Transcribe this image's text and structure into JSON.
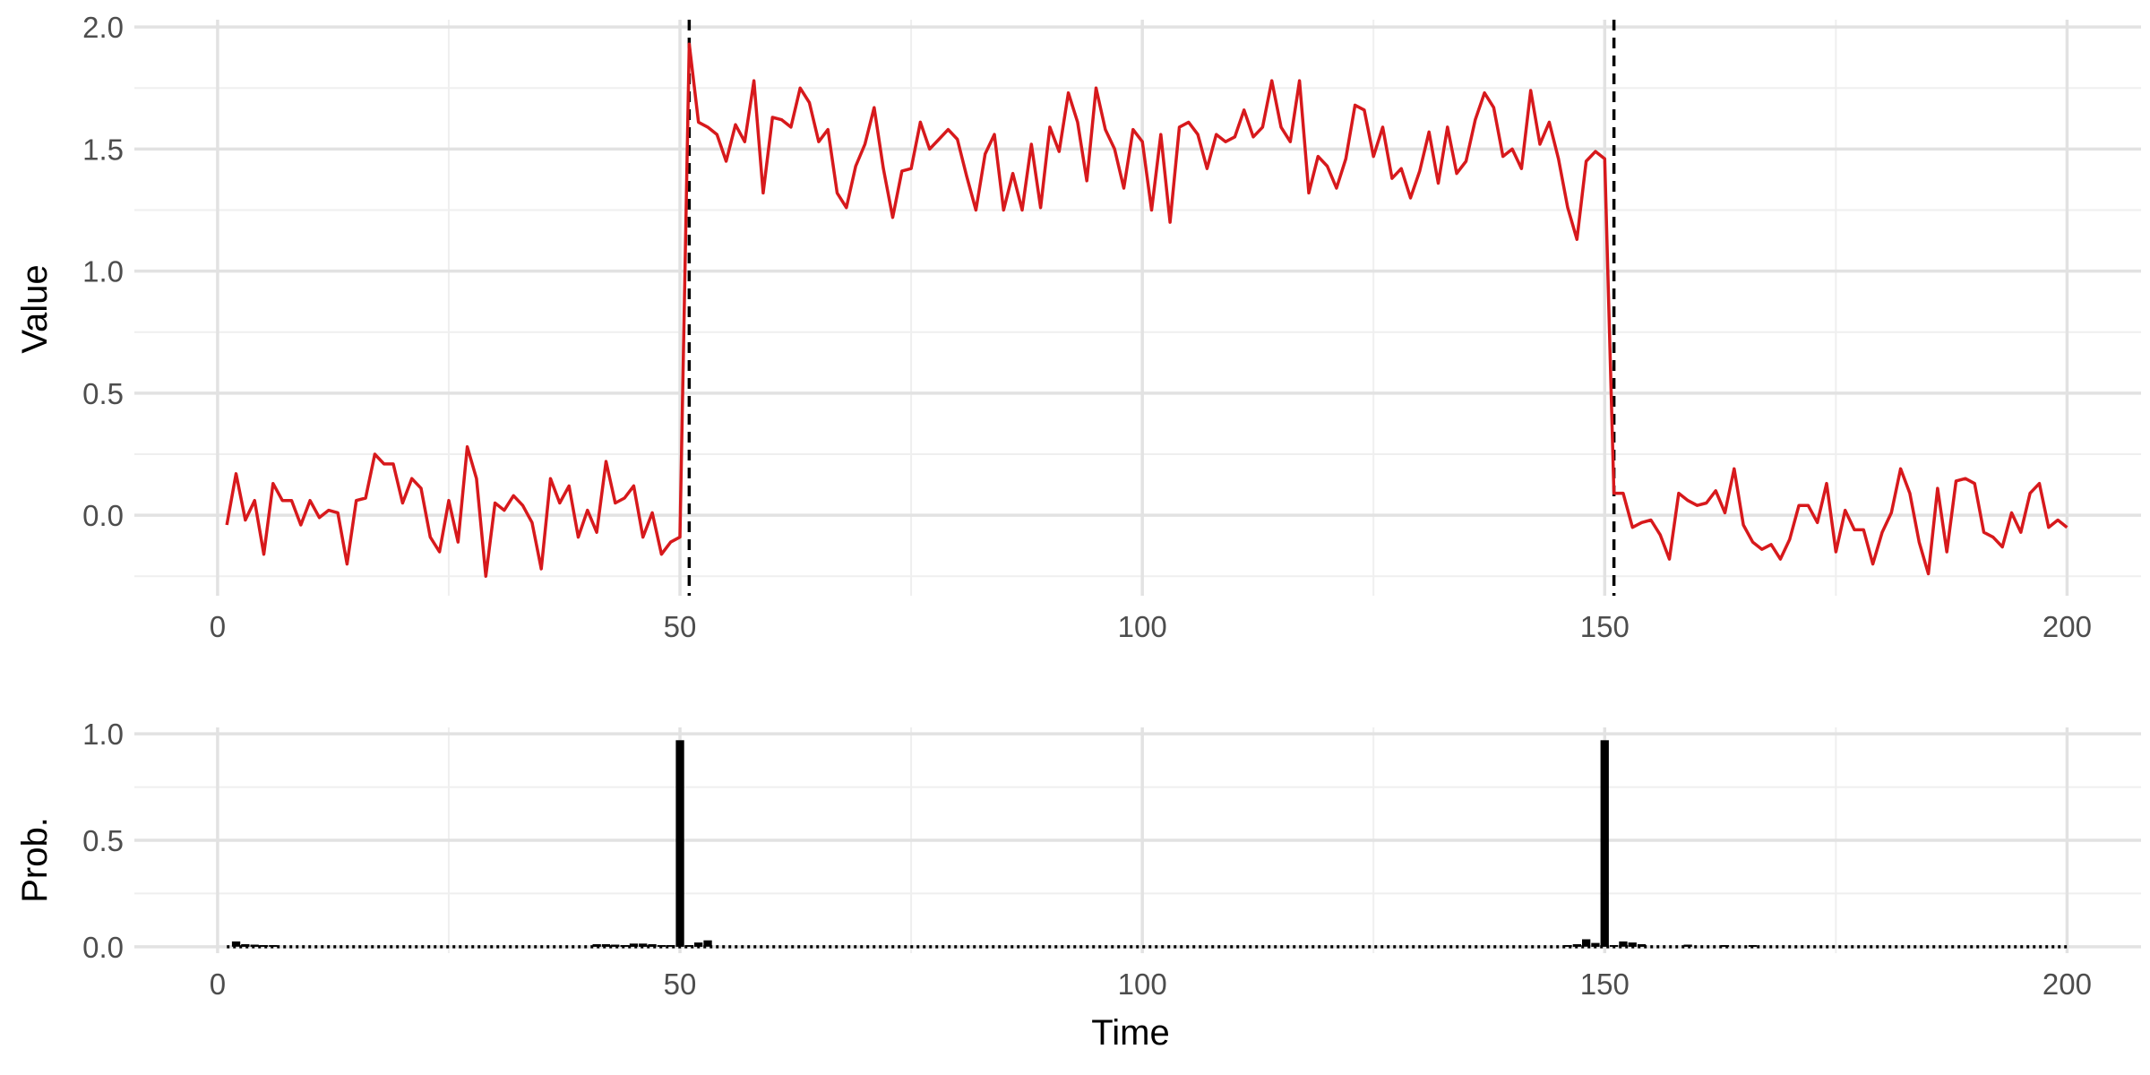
{
  "chart_data": [
    {
      "type": "line",
      "title": "",
      "xlabel": "",
      "ylabel": "Value",
      "xlim": [
        -9,
        208
      ],
      "ylim": [
        -0.33,
        2.03
      ],
      "x_ticks": [
        0,
        50,
        100,
        150,
        200
      ],
      "y_ticks": [
        0.0,
        0.5,
        1.0,
        1.5,
        2.0
      ],
      "x_tick_labels": [
        "0",
        "50",
        "100",
        "150",
        "200"
      ],
      "y_tick_labels": [
        "0.0",
        "0.5",
        "1.0",
        "1.5",
        "2.0"
      ],
      "grid": true,
      "x": [
        1,
        2,
        3,
        4,
        5,
        6,
        7,
        8,
        9,
        10,
        11,
        12,
        13,
        14,
        15,
        16,
        17,
        18,
        19,
        20,
        21,
        22,
        23,
        24,
        25,
        26,
        27,
        28,
        29,
        30,
        31,
        32,
        33,
        34,
        35,
        36,
        37,
        38,
        39,
        40,
        41,
        42,
        43,
        44,
        45,
        46,
        47,
        48,
        49,
        50,
        51,
        52,
        53,
        54,
        55,
        56,
        57,
        58,
        59,
        60,
        61,
        62,
        63,
        64,
        65,
        66,
        67,
        68,
        69,
        70,
        71,
        72,
        73,
        74,
        75,
        76,
        77,
        78,
        79,
        80,
        81,
        82,
        83,
        84,
        85,
        86,
        87,
        88,
        89,
        90,
        91,
        92,
        93,
        94,
        95,
        96,
        97,
        98,
        99,
        100,
        101,
        102,
        103,
        104,
        105,
        106,
        107,
        108,
        109,
        110,
        111,
        112,
        113,
        114,
        115,
        116,
        117,
        118,
        119,
        120,
        121,
        122,
        123,
        124,
        125,
        126,
        127,
        128,
        129,
        130,
        131,
        132,
        133,
        134,
        135,
        136,
        137,
        138,
        139,
        140,
        141,
        142,
        143,
        144,
        145,
        146,
        147,
        148,
        149,
        150,
        151,
        152,
        153,
        154,
        155,
        156,
        157,
        158,
        159,
        160,
        161,
        162,
        163,
        164,
        165,
        166,
        167,
        168,
        169,
        170,
        171,
        172,
        173,
        174,
        175,
        176,
        177,
        178,
        179,
        180,
        181,
        182,
        183,
        184,
        185,
        186,
        187,
        188,
        189,
        190,
        191,
        192,
        193,
        194,
        195,
        196,
        197,
        198,
        199,
        200
      ],
      "series": [
        {
          "color": "#d7191c",
          "values": [
            -0.04,
            0.17,
            -0.02,
            0.06,
            -0.16,
            0.13,
            0.06,
            0.06,
            -0.04,
            0.06,
            -0.01,
            0.02,
            0.01,
            -0.2,
            0.06,
            0.07,
            0.25,
            0.21,
            0.21,
            0.05,
            0.15,
            0.11,
            -0.09,
            -0.15,
            0.06,
            -0.11,
            0.28,
            0.15,
            -0.25,
            0.05,
            0.02,
            0.08,
            0.04,
            -0.03,
            -0.22,
            0.15,
            0.05,
            0.12,
            -0.09,
            0.02,
            -0.07,
            0.22,
            0.05,
            0.07,
            0.12,
            -0.09,
            0.01,
            -0.16,
            -0.11,
            -0.09,
            1.93,
            1.61,
            1.59,
            1.56,
            1.45,
            1.6,
            1.53,
            1.78,
            1.32,
            1.63,
            1.62,
            1.59,
            1.75,
            1.69,
            1.53,
            1.58,
            1.32,
            1.26,
            1.43,
            1.52,
            1.67,
            1.42,
            1.22,
            1.41,
            1.42,
            1.61,
            1.5,
            1.54,
            1.58,
            1.54,
            1.39,
            1.25,
            1.48,
            1.56,
            1.25,
            1.4,
            1.25,
            1.52,
            1.26,
            1.59,
            1.49,
            1.73,
            1.61,
            1.37,
            1.75,
            1.58,
            1.5,
            1.34,
            1.58,
            1.53,
            1.25,
            1.56,
            1.2,
            1.59,
            1.61,
            1.56,
            1.42,
            1.56,
            1.53,
            1.55,
            1.66,
            1.55,
            1.59,
            1.78,
            1.59,
            1.53,
            1.78,
            1.32,
            1.47,
            1.43,
            1.34,
            1.46,
            1.68,
            1.66,
            1.47,
            1.59,
            1.38,
            1.42,
            1.3,
            1.41,
            1.57,
            1.36,
            1.59,
            1.4,
            1.45,
            1.62,
            1.73,
            1.67,
            1.47,
            1.5,
            1.42,
            1.74,
            1.52,
            1.61,
            1.46,
            1.26,
            1.13,
            1.45,
            1.49,
            1.46,
            0.09,
            0.09,
            -0.05,
            -0.03,
            -0.02,
            -0.08,
            -0.18,
            0.09,
            0.06,
            0.04,
            0.05,
            0.1,
            0.01,
            0.19,
            -0.04,
            -0.11,
            -0.14,
            -0.12,
            -0.18,
            -0.1,
            0.04,
            0.04,
            -0.03,
            0.13,
            -0.15,
            0.02,
            -0.06,
            -0.06,
            -0.2,
            -0.07,
            0.01,
            0.19,
            0.09,
            -0.11,
            -0.24,
            0.11,
            -0.15,
            0.14,
            0.15,
            0.13,
            -0.07,
            -0.09,
            -0.13,
            0.01,
            -0.07,
            0.09,
            0.13,
            -0.05,
            -0.02,
            -0.05
          ]
        }
      ],
      "vlines": [
        {
          "x": 51,
          "style": "dashed",
          "color": "#000000"
        },
        {
          "x": 151,
          "style": "dashed",
          "color": "#000000"
        }
      ]
    },
    {
      "type": "bar",
      "title": "",
      "xlabel": "Time",
      "ylabel": "Prob.",
      "xlim": [
        -9,
        208
      ],
      "ylim": [
        -0.03,
        1.03
      ],
      "x_ticks": [
        0,
        50,
        100,
        150,
        200
      ],
      "y_ticks": [
        0.0,
        0.5,
        1.0
      ],
      "x_tick_labels": [
        "0",
        "50",
        "100",
        "150",
        "200"
      ],
      "y_tick_labels": [
        "0.0",
        "0.5",
        "1.0"
      ],
      "grid": true,
      "bar_color": "#000000",
      "baseline_style": "dotted",
      "x": [
        2,
        3,
        4,
        5,
        6,
        41,
        42,
        43,
        44,
        45,
        46,
        47,
        48,
        49,
        50,
        51,
        52,
        53,
        146,
        147,
        148,
        149,
        150,
        151,
        152,
        153,
        154,
        159,
        163,
        166
      ],
      "values": [
        0.025,
        0.012,
        0.01,
        0.008,
        0.008,
        0.012,
        0.012,
        0.01,
        0.008,
        0.015,
        0.015,
        0.012,
        0.008,
        0.008,
        0.97,
        0.008,
        0.02,
        0.03,
        0.008,
        0.012,
        0.035,
        0.018,
        0.97,
        0.008,
        0.025,
        0.02,
        0.012,
        0.01,
        0.008,
        0.008
      ]
    }
  ]
}
